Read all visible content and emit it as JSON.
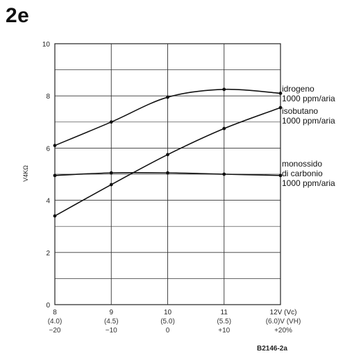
{
  "figure_label": "2e",
  "footer_code": "B2146-2a",
  "chart_data": {
    "type": "line",
    "title": "",
    "ylabel": "V4KΩ",
    "xlabel": "",
    "ylim": [
      0,
      10
    ],
    "xlim": [
      8,
      12
    ],
    "grid": true,
    "x": [
      8,
      9,
      10,
      11,
      12
    ],
    "x_tick_labels": [
      "8",
      "9",
      "10",
      "11",
      "12V (Vc)"
    ],
    "x_tick_labels_row2": [
      "(4.0)",
      "(4.5)",
      "(5.0)",
      "(5.5)",
      "(6.0)V (VH)"
    ],
    "x_tick_labels_row3": [
      "−20",
      "−10",
      "0",
      "+10",
      "+20%"
    ],
    "y_ticks": [
      0,
      2,
      4,
      6,
      8,
      10
    ],
    "series": [
      {
        "name": "idrogeno 1000 ppm/aria",
        "label_lines": [
          "idrogeno",
          "1000 ppm/aria"
        ],
        "values": [
          6.1,
          7.0,
          7.95,
          8.25,
          8.1
        ]
      },
      {
        "name": "isobutano 1000 ppm/aria",
        "label_lines": [
          "isobutano",
          "1000 ppm/aria"
        ],
        "values": [
          3.4,
          4.6,
          5.75,
          6.75,
          7.55
        ]
      },
      {
        "name": "monossido di carbonio 1000 ppm/aria",
        "label_lines": [
          "monossido",
          "di carbonio",
          "1000 ppm/aria"
        ],
        "values": [
          4.95,
          5.05,
          5.05,
          5.0,
          4.95
        ]
      }
    ]
  }
}
